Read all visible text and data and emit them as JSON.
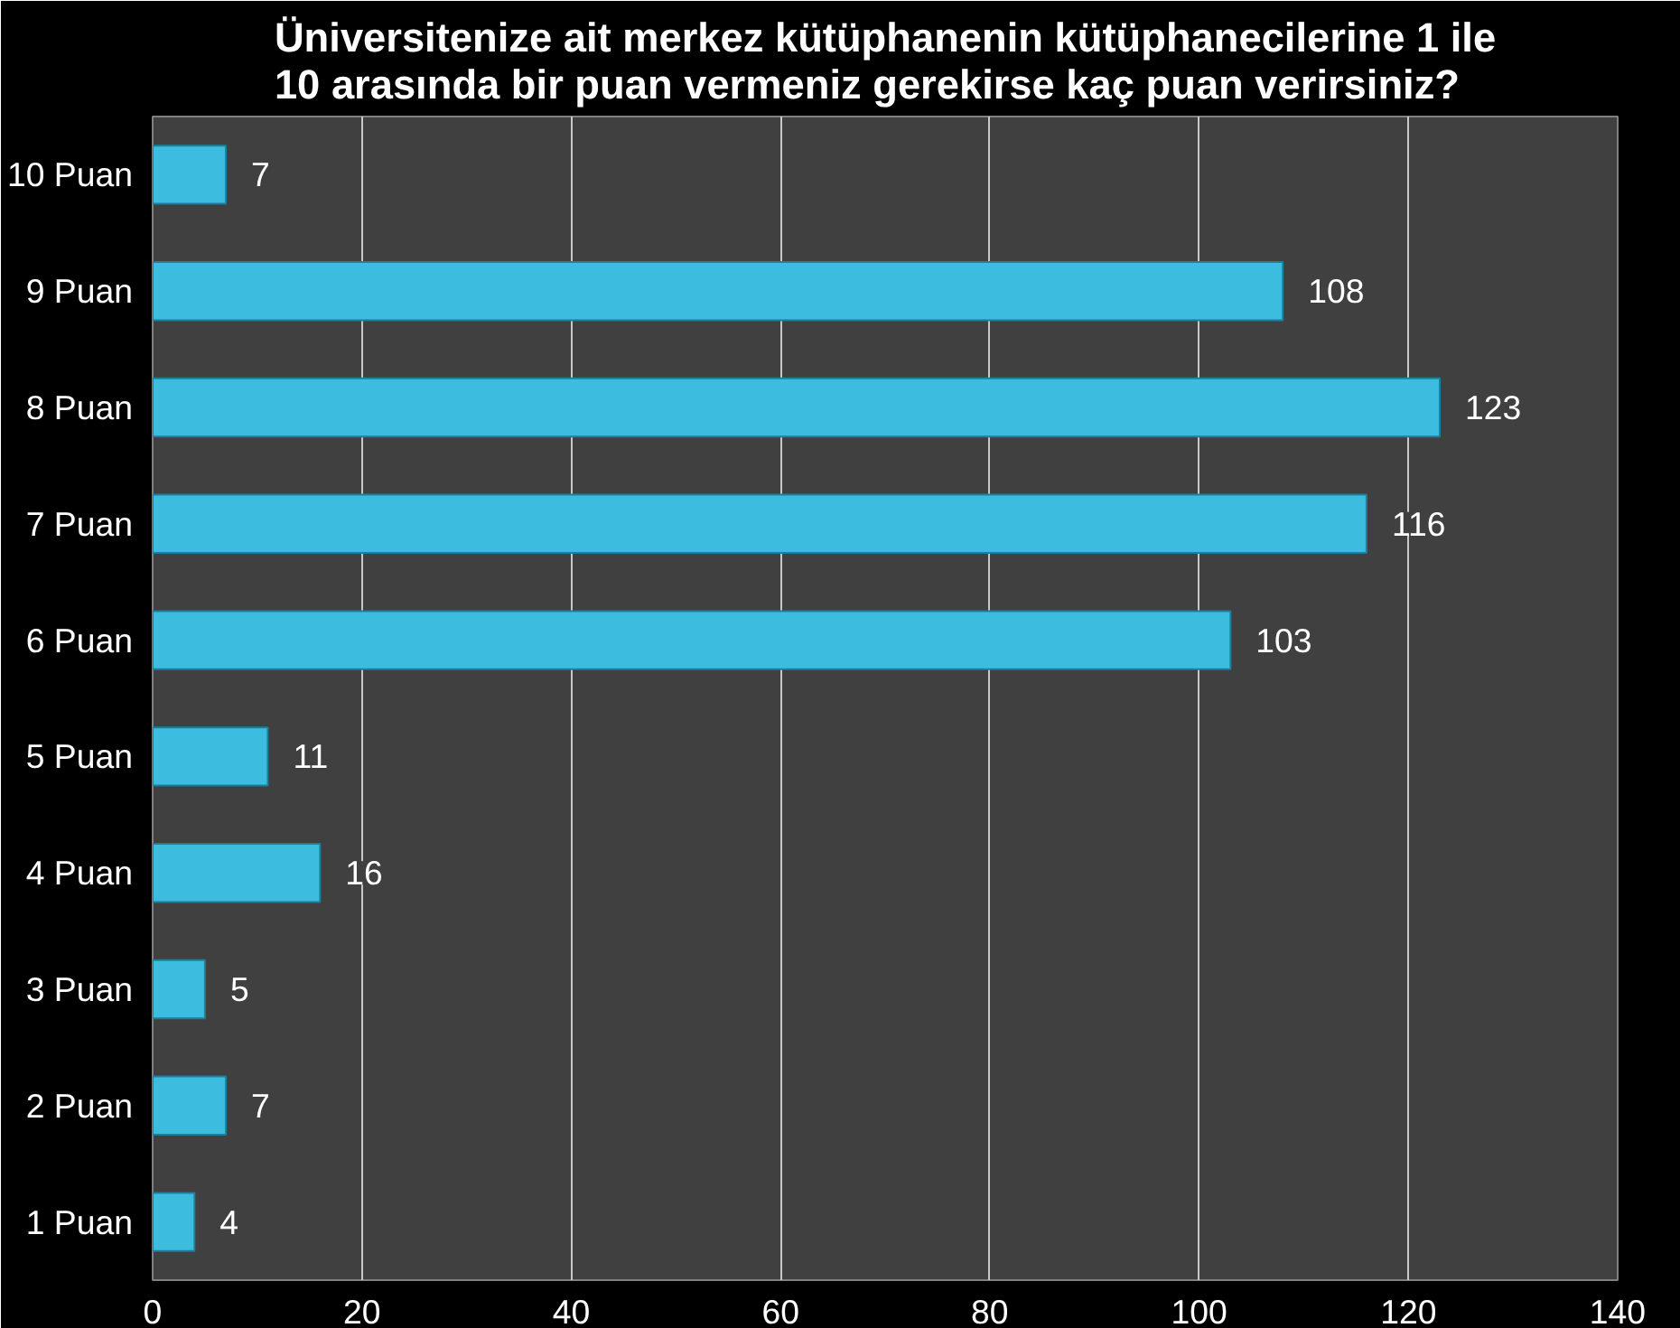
{
  "chart_data": {
    "type": "bar",
    "orientation": "horizontal",
    "title": "Üniversitenize ait merkez kütüphanenin kütüphanecilerine 1 ile\n10 arasında bir puan vermeniz gerekirse kaç puan verirsiniz?",
    "categories": [
      "10 Puan",
      "9 Puan",
      "8 Puan",
      "7 Puan",
      "6 Puan",
      "5 Puan",
      "4 Puan",
      "3 Puan",
      "2 Puan",
      "1 Puan"
    ],
    "values": [
      7,
      108,
      123,
      116,
      103,
      11,
      16,
      5,
      7,
      4
    ],
    "color": "#3cbde0",
    "xlim": [
      0,
      140
    ],
    "xticks": [
      0,
      20,
      40,
      60,
      80,
      100,
      120,
      140
    ],
    "grid": "x",
    "data_labels": true
  }
}
